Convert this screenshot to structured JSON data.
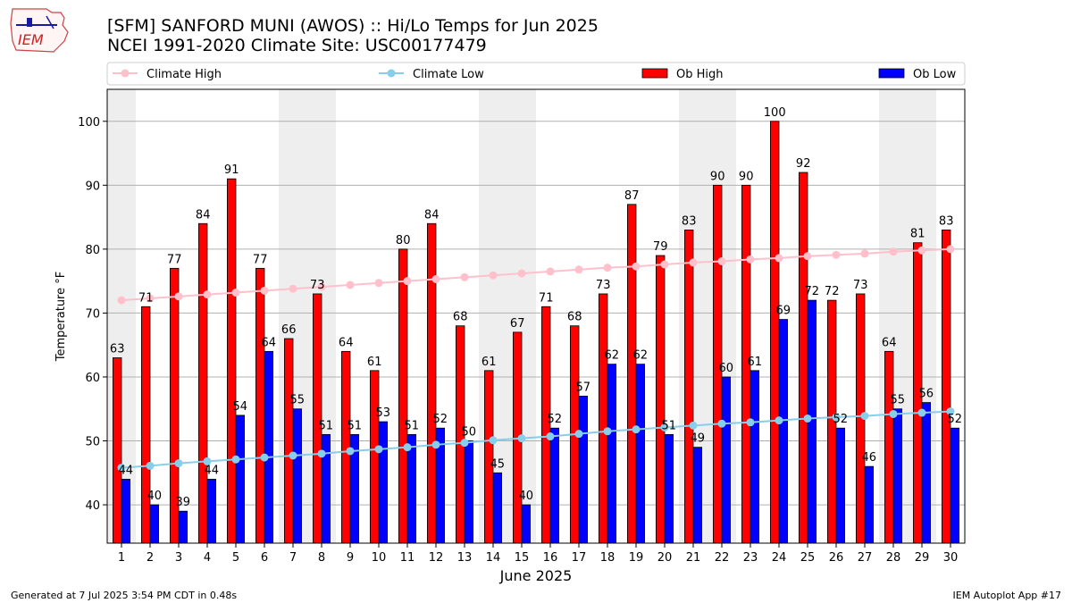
{
  "header": {
    "title": "[SFM] SANFORD MUNI (AWOS) :: Hi/Lo Temps for Jun 2025",
    "subtitle": "NCEI 1991-2020 Climate Site: USC00177479",
    "logo_text": "IEM"
  },
  "footer": {
    "generated": "Generated at 7 Jul 2025 3:54 PM CDT in 0.48s",
    "app": "IEM Autoplot App #17"
  },
  "colors": {
    "ob_high": "#ff0000",
    "ob_low": "#0000ff",
    "climate_high": "#ffc0cb",
    "climate_low": "#87ceeb",
    "weekend_band": "#eeeeee",
    "grid": "#b0b0b0"
  },
  "chart_data": {
    "type": "bar",
    "xlabel": "June 2025",
    "ylabel": "Temperature °F",
    "ylim": [
      34,
      105
    ],
    "yticks": [
      40,
      50,
      60,
      70,
      80,
      90,
      100
    ],
    "grid": "horizontal",
    "legend_position": "top",
    "categories": [
      "1",
      "2",
      "3",
      "4",
      "5",
      "6",
      "7",
      "8",
      "9",
      "10",
      "11",
      "12",
      "13",
      "14",
      "15",
      "16",
      "17",
      "18",
      "19",
      "20",
      "21",
      "22",
      "23",
      "24",
      "25",
      "26",
      "27",
      "28",
      "29",
      "30"
    ],
    "shaded_days": [
      1,
      7,
      8,
      14,
      15,
      21,
      22,
      28,
      29
    ],
    "series": [
      {
        "name": "Ob High",
        "kind": "bar",
        "values": [
          63,
          71,
          77,
          84,
          91,
          77,
          66,
          73,
          64,
          61,
          80,
          84,
          68,
          61,
          67,
          71,
          68,
          73,
          87,
          79,
          83,
          90,
          90,
          100,
          92,
          72,
          73,
          64,
          81,
          83
        ]
      },
      {
        "name": "Ob Low",
        "kind": "bar",
        "values": [
          44,
          40,
          39,
          44,
          54,
          64,
          55,
          51,
          51,
          53,
          51,
          52,
          50,
          45,
          40,
          52,
          57,
          62,
          62,
          51,
          49,
          60,
          61,
          69,
          72,
          52,
          46,
          55,
          56,
          52
        ]
      },
      {
        "name": "Climate High",
        "kind": "line",
        "values": [
          72.0,
          72.3,
          72.6,
          72.9,
          73.2,
          73.5,
          73.8,
          74.1,
          74.4,
          74.7,
          75.0,
          75.3,
          75.6,
          75.9,
          76.2,
          76.5,
          76.8,
          77.1,
          77.3,
          77.6,
          77.9,
          78.1,
          78.4,
          78.6,
          78.9,
          79.1,
          79.3,
          79.6,
          79.8,
          80.0
        ]
      },
      {
        "name": "Climate Low",
        "kind": "line",
        "values": [
          45.8,
          46.1,
          46.5,
          46.8,
          47.1,
          47.4,
          47.7,
          48.0,
          48.4,
          48.7,
          49.0,
          49.4,
          49.7,
          50.1,
          50.4,
          50.7,
          51.1,
          51.5,
          51.8,
          52.1,
          52.4,
          52.7,
          52.9,
          53.2,
          53.5,
          53.7,
          53.9,
          54.2,
          54.4,
          54.6
        ]
      }
    ]
  }
}
